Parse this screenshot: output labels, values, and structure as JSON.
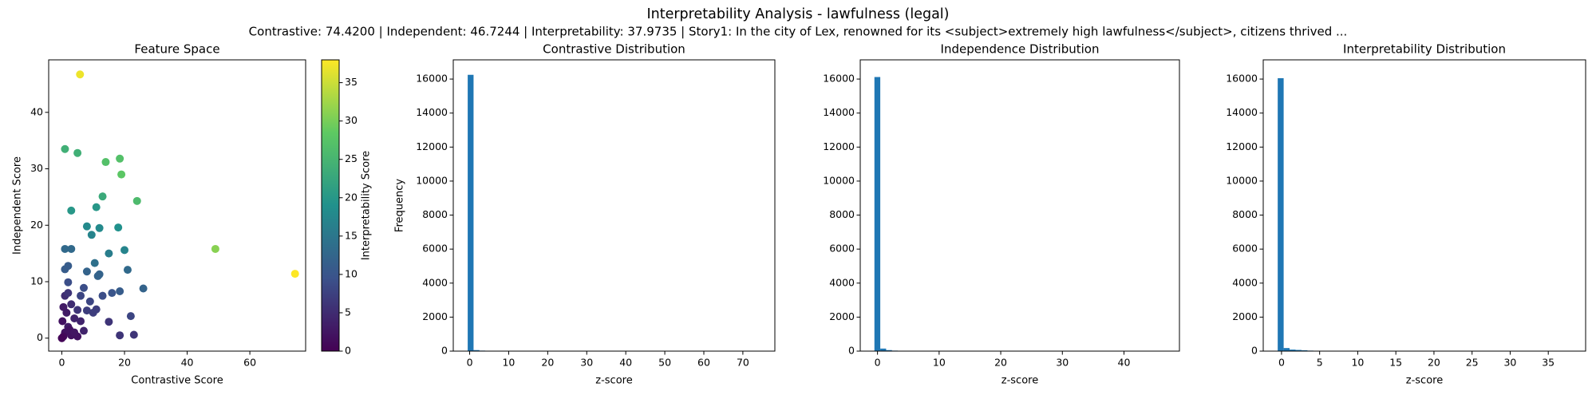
{
  "title": "Interpretability Analysis - lawfulness (legal)",
  "subtitle": "Contrastive: 74.4200 | Independent: 46.7244 | Interpretability: 37.9735 | Story1: In the city of Lex, renowned for its <subject>extremely high lawfulness</subject>, citizens thrived ...",
  "chart_data": [
    {
      "type": "scatter",
      "title": "Feature Space",
      "x_label": "Contrastive Score",
      "y_label": "Independent Score",
      "cmap": "viridis",
      "x": [
        74.42,
        5.8,
        49,
        1,
        5,
        14,
        18.5,
        19,
        24,
        13,
        3,
        11,
        8,
        12,
        18,
        9.5,
        20,
        15,
        1,
        3,
        10.5,
        21,
        12,
        11.5,
        8,
        1,
        2,
        26,
        18.5,
        2,
        16,
        7,
        13,
        9,
        6,
        22,
        11,
        10,
        8,
        15,
        18.5,
        23,
        5,
        3,
        1,
        4,
        7,
        2,
        1,
        0.5,
        3,
        5,
        0.2,
        1.5,
        0,
        2.5,
        4,
        0.5,
        6,
        2
      ],
      "y": [
        11.4,
        46.72,
        15.8,
        33.5,
        32.8,
        31.2,
        31.8,
        29,
        24.3,
        25.1,
        22.6,
        23.2,
        19.8,
        19.5,
        19.6,
        18.3,
        15.6,
        15,
        15.8,
        15.8,
        13.3,
        12.1,
        11.3,
        11,
        11.8,
        12.2,
        12.8,
        8.8,
        8.3,
        9.9,
        8,
        8.9,
        7.5,
        6.5,
        7.5,
        3.9,
        5.1,
        4.5,
        4.9,
        2.9,
        0.5,
        0.6,
        5,
        6,
        7.5,
        3.5,
        1.3,
        2,
        1,
        0.3,
        0.5,
        0.3,
        3,
        4.5,
        0,
        1.5,
        1,
        5.5,
        3,
        8
      ],
      "c": [
        37.9735,
        37,
        31,
        24,
        24,
        27,
        27,
        28,
        26,
        23,
        20,
        20,
        18,
        18,
        19,
        17,
        17,
        16,
        13,
        13,
        14,
        13,
        12,
        12,
        12,
        11,
        11,
        12,
        11,
        9,
        10,
        9,
        9,
        8,
        8,
        8,
        7,
        7,
        7,
        6,
        6,
        6,
        6,
        5,
        5,
        4,
        4,
        3,
        2,
        1,
        2,
        2,
        2,
        3,
        0.5,
        2,
        2.5,
        3,
        4,
        6
      ],
      "xlim": [
        -4.2,
        77.8
      ],
      "ylim": [
        -2.3,
        49.3
      ],
      "xticks": [
        0,
        20,
        40,
        60
      ],
      "yticks": [
        0,
        10,
        20,
        30,
        40
      ],
      "colorbar": {
        "label": "Interpretability Score",
        "lim": [
          0,
          37.9735
        ],
        "ticks": [
          0,
          5,
          10,
          15,
          20,
          25,
          30,
          35
        ]
      }
    },
    {
      "type": "histogram",
      "title": "Contrastive Distribution",
      "x_label": "z-score",
      "y_label": "Frequency",
      "color": "#1f77b4",
      "bins": [
        -0.5,
        1,
        2.5,
        4,
        5.5,
        7,
        8.5,
        10,
        11.5,
        13,
        14.5,
        16,
        17.5,
        19,
        20.5,
        22,
        23.5,
        25,
        26.5,
        28,
        29.5,
        31,
        32.5,
        34,
        35.5,
        37,
        38.5,
        40,
        41.5,
        43,
        44.5,
        46,
        47.5,
        49,
        50.5,
        52,
        53.5,
        55,
        56.5,
        58,
        59.5,
        61,
        62.5,
        64,
        65.5,
        67,
        68.5,
        70,
        71.5,
        73,
        74.5
      ],
      "counts": [
        16250,
        60,
        30,
        15,
        8,
        5,
        4,
        3,
        2,
        2,
        1,
        1,
        1,
        0,
        0,
        1,
        0,
        0,
        0,
        0,
        0,
        0,
        0,
        0,
        0,
        0,
        0,
        0,
        0,
        0,
        0,
        0,
        0,
        1,
        0,
        0,
        0,
        0,
        0,
        0,
        0,
        0,
        0,
        0,
        0,
        0,
        0,
        0,
        0,
        1
      ],
      "xlim": [
        -4.2,
        78.2
      ],
      "ylim": [
        0,
        17130
      ],
      "xticks": [
        0,
        10,
        20,
        30,
        40,
        50,
        60,
        70
      ],
      "yticks": [
        0,
        2000,
        4000,
        6000,
        8000,
        10000,
        12000,
        14000,
        16000
      ]
    },
    {
      "type": "histogram",
      "title": "Independence Distribution",
      "x_label": "z-score",
      "color": "#1f77b4",
      "bins": [
        -0.5,
        0.45,
        1.4,
        2.35,
        3.3,
        4.25,
        5.2,
        6.15,
        7.1,
        8.05,
        9,
        9.95,
        10.9,
        11.85,
        12.8,
        13.75,
        14.7,
        15.65,
        16.6,
        17.55,
        18.5,
        19.45,
        20.4,
        21.35,
        22.3,
        23.25,
        24.2,
        25.15,
        26.1,
        27.05,
        28,
        28.95,
        29.9,
        30.85,
        31.8,
        32.75,
        33.7,
        34.65,
        35.6,
        36.55,
        37.5,
        38.45,
        39.4,
        40.35,
        41.3,
        42.25,
        43.2,
        44.15,
        45.1,
        46.05,
        47
      ],
      "counts": [
        16120,
        150,
        60,
        30,
        20,
        12,
        8,
        5,
        4,
        3,
        2,
        2,
        1,
        1,
        1,
        1,
        0,
        1,
        0,
        0,
        1,
        0,
        0,
        0,
        0,
        0,
        0,
        0,
        0,
        0,
        0,
        0,
        0,
        1,
        0,
        0,
        1,
        0,
        0,
        0,
        0,
        0,
        0,
        0,
        0,
        0,
        0,
        0,
        0,
        1
      ],
      "xlim": [
        -2.8,
        49
      ],
      "ylim": [
        0,
        17130
      ],
      "xticks": [
        0,
        10,
        20,
        30,
        40
      ],
      "yticks": [
        0,
        2000,
        4000,
        6000,
        8000,
        10000,
        12000,
        14000,
        16000
      ]
    },
    {
      "type": "histogram",
      "title": "Interpretability Distribution",
      "x_label": "z-score",
      "color": "#1f77b4",
      "bins": [
        -0.5,
        0.28,
        1.06,
        1.84,
        2.62,
        3.4,
        4.18,
        4.96,
        5.74,
        6.52,
        7.3,
        8.08,
        8.86,
        9.64,
        10.42,
        11.2,
        11.98,
        12.76,
        13.54,
        14.32,
        15.1,
        15.88,
        16.66,
        17.44,
        18.22,
        19,
        19.78,
        20.56,
        21.34,
        22.12,
        22.9,
        23.68,
        24.46,
        25.24,
        26.02,
        26.8,
        27.58,
        28.36,
        29.14,
        29.92,
        30.7,
        31.48,
        32.26,
        33.04,
        33.82,
        34.6,
        35.38,
        36.16,
        36.94,
        37.72,
        38.5
      ],
      "counts": [
        16050,
        180,
        90,
        70,
        50,
        30,
        20,
        12,
        8,
        5,
        4,
        3,
        2,
        2,
        1,
        1,
        1,
        1,
        0,
        1,
        0,
        1,
        0,
        0,
        0,
        0,
        0,
        0,
        1,
        0,
        0,
        0,
        0,
        0,
        0,
        0,
        1,
        0,
        0,
        0,
        0,
        0,
        0,
        0,
        0,
        0,
        0,
        0,
        0,
        1
      ],
      "xlim": [
        -2.4,
        39.9
      ],
      "ylim": [
        0,
        17130
      ],
      "xticks": [
        0,
        5,
        10,
        15,
        20,
        25,
        30,
        35
      ],
      "yticks": [
        0,
        2000,
        4000,
        6000,
        8000,
        10000,
        12000,
        14000,
        16000
      ]
    }
  ]
}
